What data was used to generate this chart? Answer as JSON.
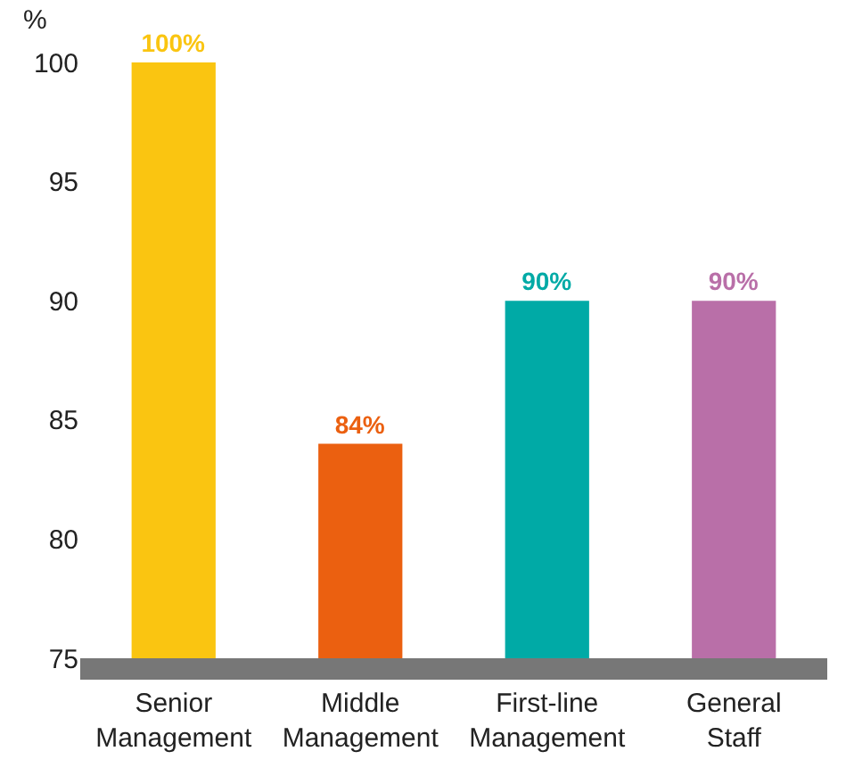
{
  "chart_data": {
    "type": "bar",
    "ylabel": "%",
    "categories": [
      "Senior Management",
      "Middle Management",
      "First-line Management",
      "General Staff"
    ],
    "values": [
      100,
      84,
      90,
      90
    ],
    "colors": [
      "#fac511",
      "#eb6010",
      "#00aaa6",
      "#b96fa8"
    ],
    "value_labels": [
      "100%",
      "84%",
      "90%",
      "90%"
    ],
    "ylim": [
      75,
      100
    ],
    "yticks": [
      75,
      80,
      85,
      90,
      95,
      100
    ]
  }
}
